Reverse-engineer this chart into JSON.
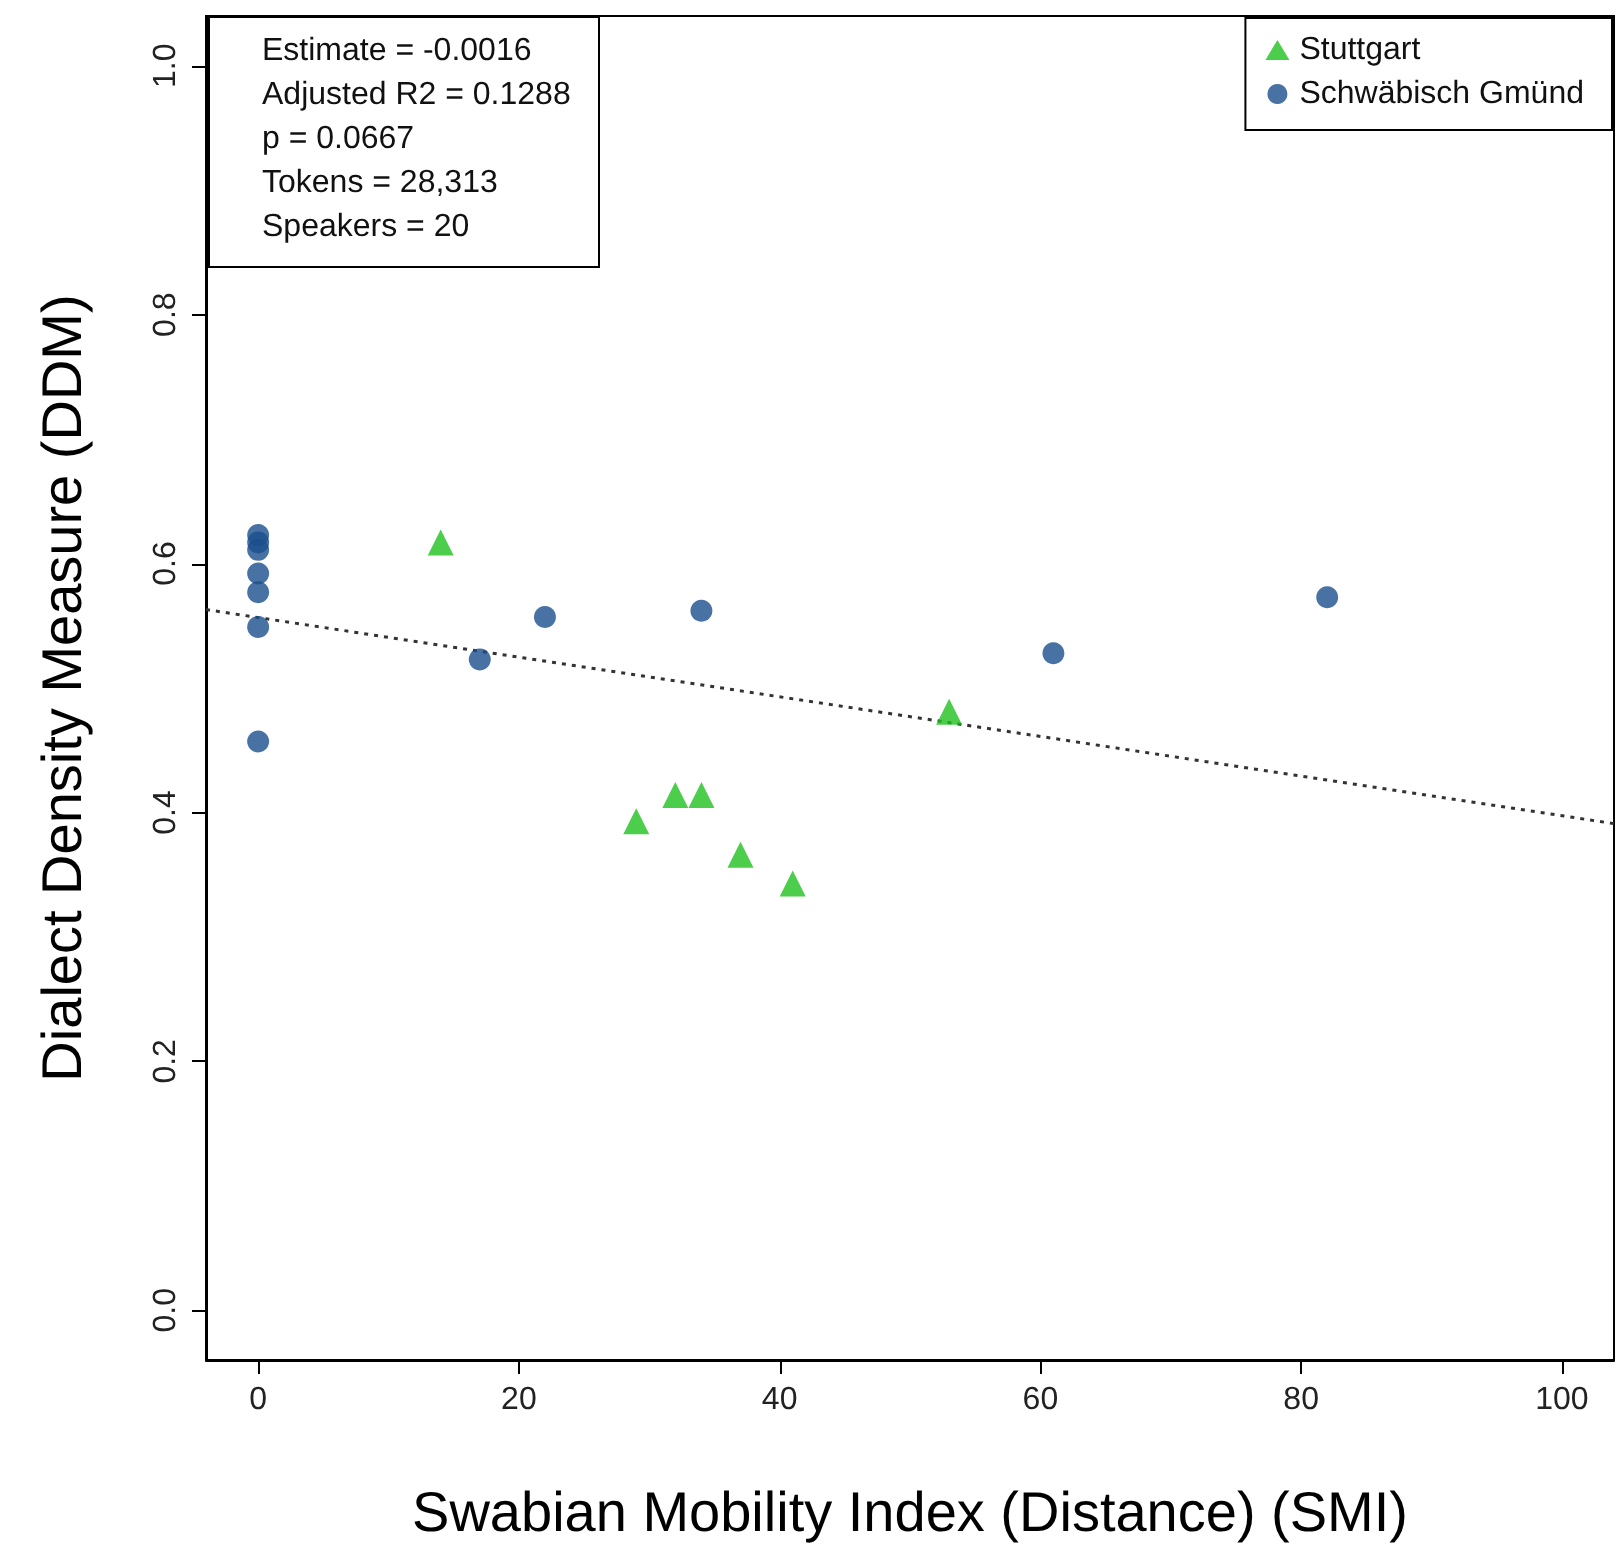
{
  "chart_data": {
    "type": "scatter",
    "xlabel": "Swabian Mobility Index (Distance) (SMI)",
    "ylabel": "Dialect Density Measure (DDM)",
    "annotations": [
      "Estimate =  -0.0016",
      "Adjusted R2 =  0.1288",
      "p = 0.0667",
      "Tokens =  28,313",
      "Speakers =  20"
    ],
    "series": [
      {
        "name": "Stuttgart",
        "color": "#1fc11f",
        "marker": "triangle",
        "x": [
          14,
          29,
          32,
          34,
          37,
          41,
          53
        ],
        "values": [
          0.617,
          0.393,
          0.414,
          0.414,
          0.366,
          0.343,
          0.481
        ]
      },
      {
        "name": "Schwäbisch Gmünd",
        "color": "#1a4f8c",
        "marker": "circle",
        "x": [
          0,
          0,
          0,
          0,
          0,
          0,
          0,
          17,
          22,
          34,
          61,
          82
        ],
        "values": [
          0.623,
          0.617,
          0.611,
          0.592,
          0.577,
          0.549,
          0.457,
          0.523,
          0.557,
          0.562,
          0.528,
          0.573
        ]
      },
      {
        "type": "line",
        "color": "#333333",
        "line_style": "dotted",
        "marker": "none",
        "x": [
          -4,
          104
        ],
        "values": [
          0.563,
          0.391
        ]
      }
    ],
    "xlim": [
      -4,
      104
    ],
    "xticks": [
      0,
      20,
      40,
      60,
      80,
      100
    ],
    "ylim": [
      -0.04,
      1.04
    ],
    "yticks": [
      {
        "value": 0,
        "label": "0.0"
      },
      0.2,
      0.4,
      0.6,
      0.8,
      {
        "value": 1,
        "label": "1.0"
      }
    ],
    "grid": false,
    "legend": "top right"
  }
}
